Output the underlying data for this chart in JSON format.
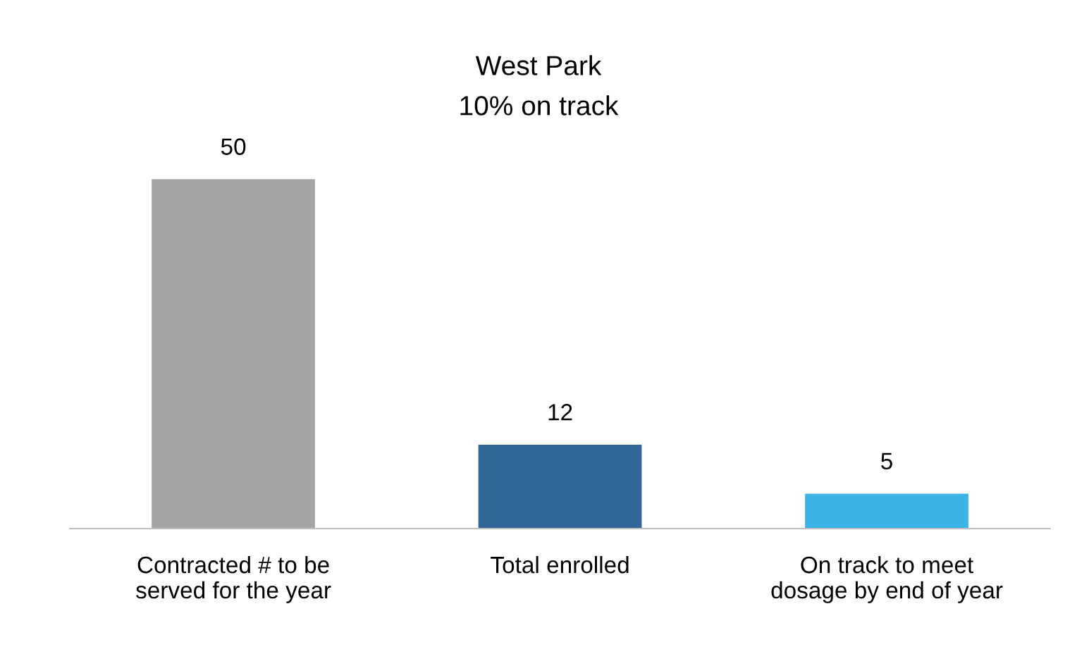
{
  "chart_data": {
    "type": "bar",
    "title": "West Park",
    "subtitle": "10% on track",
    "categories": [
      "Contracted # to be served for the year",
      "Total enrolled",
      "On track to meet dosage by end of year"
    ],
    "values": [
      50,
      12,
      5
    ],
    "colors": [
      "#a5a5a5",
      "#336699",
      "#3bb3e6"
    ],
    "data_labels": true,
    "grid": false,
    "legend": false
  }
}
